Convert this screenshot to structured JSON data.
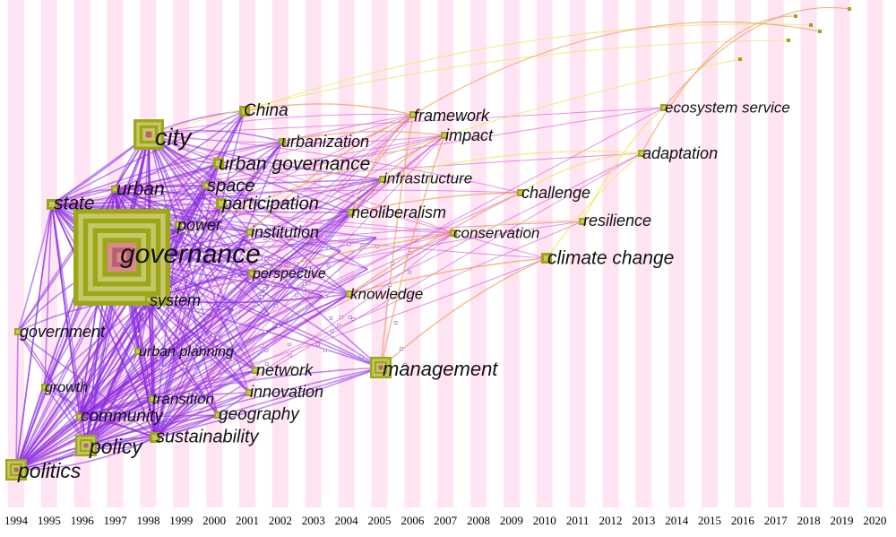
{
  "years": [
    "1994",
    "1995",
    "1996",
    "1997",
    "1998",
    "1999",
    "2000",
    "2001",
    "2002",
    "2003",
    "2004",
    "2005",
    "2006",
    "2007",
    "2008",
    "2009",
    "2010",
    "2011",
    "2012",
    "2013",
    "2014",
    "2015",
    "2016",
    "2017",
    "2018",
    "2019",
    "2020"
  ],
  "keywords": [
    {
      "id": "governance",
      "label": "governance",
      "year": "1998",
      "weight": 5
    },
    {
      "id": "city",
      "label": "city",
      "year": "1998",
      "weight": 4
    },
    {
      "id": "politics",
      "label": "politics",
      "year": "1994",
      "weight": 3
    },
    {
      "id": "policy",
      "label": "policy",
      "year": "1996",
      "weight": 3
    },
    {
      "id": "management",
      "label": "management",
      "year": "2005",
      "weight": 3
    },
    {
      "id": "climate-change",
      "label": "climate change",
      "year": "2010",
      "weight": 2
    },
    {
      "id": "state",
      "label": "state",
      "year": "1995",
      "weight": 2
    },
    {
      "id": "urban",
      "label": "urban",
      "year": "1997",
      "weight": 1
    },
    {
      "id": "china",
      "label": "China",
      "year": "2001",
      "weight": 2
    },
    {
      "id": "urbanization",
      "label": "urbanization",
      "year": "2002",
      "weight": 1
    },
    {
      "id": "urban-governance",
      "label": "urban governance",
      "year": "2000",
      "weight": 2
    },
    {
      "id": "space",
      "label": "space",
      "year": "2000",
      "weight": 1
    },
    {
      "id": "participation",
      "label": "participation",
      "year": "2001",
      "weight": 2
    },
    {
      "id": "power",
      "label": "power",
      "year": "1999",
      "weight": 1
    },
    {
      "id": "institution",
      "label": "institution",
      "year": "2002",
      "weight": 1
    },
    {
      "id": "system",
      "label": "system",
      "year": "1998",
      "weight": 1
    },
    {
      "id": "perspective",
      "label": "perspective",
      "year": "2002",
      "weight": 1
    },
    {
      "id": "government",
      "label": "government",
      "year": "1994",
      "weight": 1
    },
    {
      "id": "urban-planning",
      "label": "urban planning",
      "year": "1997",
      "weight": 1
    },
    {
      "id": "network",
      "label": "network",
      "year": "2002",
      "weight": 1
    },
    {
      "id": "innovation",
      "label": "innovation",
      "year": "2002",
      "weight": 1
    },
    {
      "id": "growth",
      "label": "growth",
      "year": "1995",
      "weight": 1
    },
    {
      "id": "transition",
      "label": "transition",
      "year": "1998",
      "weight": 1
    },
    {
      "id": "community",
      "label": "community",
      "year": "1996",
      "weight": 1
    },
    {
      "id": "geography",
      "label": "geography",
      "year": "2000",
      "weight": 1
    },
    {
      "id": "sustainability",
      "label": "sustainability",
      "year": "1998",
      "weight": 2
    },
    {
      "id": "framework",
      "label": "framework",
      "year": "2006",
      "weight": 1
    },
    {
      "id": "impact",
      "label": "impact",
      "year": "2007",
      "weight": 1
    },
    {
      "id": "infrastructure",
      "label": "infrastructure",
      "year": "2006",
      "weight": 1
    },
    {
      "id": "neoliberalism",
      "label": "neoliberalism",
      "year": "2004",
      "weight": 1
    },
    {
      "id": "knowledge",
      "label": "knowledge",
      "year": "2005",
      "weight": 1
    },
    {
      "id": "conservation",
      "label": "conservation",
      "year": "2008",
      "weight": 1
    },
    {
      "id": "challenge",
      "label": "challenge",
      "year": "2009",
      "weight": 1
    },
    {
      "id": "resilience",
      "label": "resilience",
      "year": "2011",
      "weight": 1
    },
    {
      "id": "adaptation",
      "label": "adaptation",
      "year": "2013",
      "weight": 1
    },
    {
      "id": "ecosystem-service",
      "label": "ecosystem service",
      "year": "2014",
      "weight": 1
    }
  ],
  "colors": {
    "band": "#ffe4f4",
    "node_outer": "#9aa818",
    "node_inner": "#c9c66a",
    "link_early": "#8a2be2",
    "link_mid": "#d24fd0",
    "link_late": "#f0a060",
    "link_latest": "#f3e46a"
  }
}
